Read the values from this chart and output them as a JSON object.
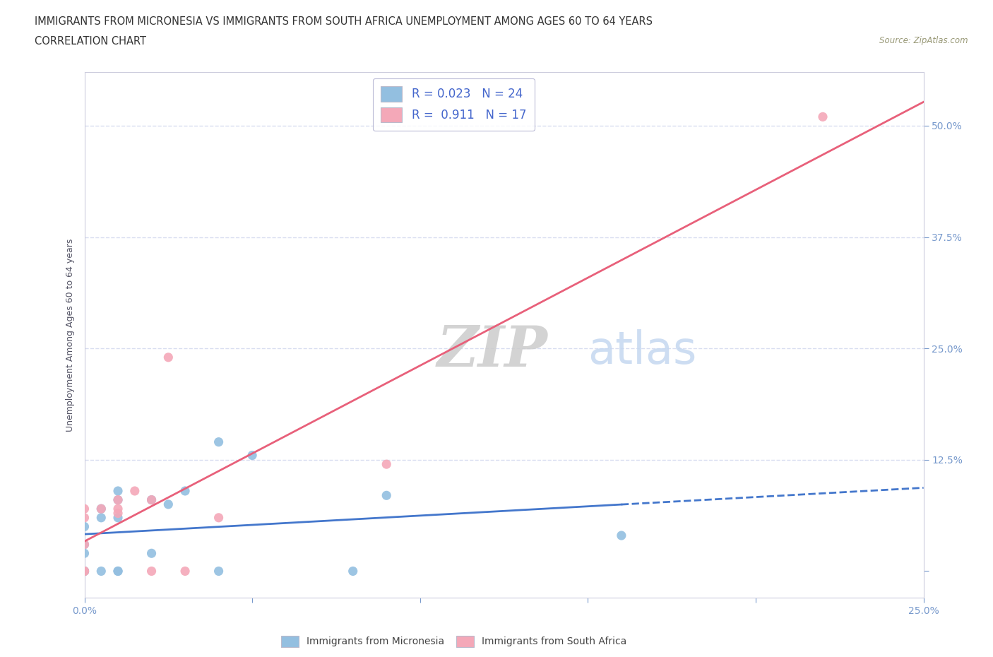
{
  "title_line1": "IMMIGRANTS FROM MICRONESIA VS IMMIGRANTS FROM SOUTH AFRICA UNEMPLOYMENT AMONG AGES 60 TO 64 YEARS",
  "title_line2": "CORRELATION CHART",
  "source": "Source: ZipAtlas.com",
  "ylabel": "Unemployment Among Ages 60 to 64 years",
  "xlim": [
    0.0,
    0.25
  ],
  "ylim": [
    -0.03,
    0.56
  ],
  "xticks": [
    0.0,
    0.05,
    0.1,
    0.15,
    0.2,
    0.25
  ],
  "yticks": [
    0.0,
    0.125,
    0.25,
    0.375,
    0.5
  ],
  "xticklabels": [
    "0.0%",
    "",
    "",
    "",
    "",
    "25.0%"
  ],
  "yticklabels": [
    "",
    "12.5%",
    "25.0%",
    "37.5%",
    "50.0%"
  ],
  "micronesia_color": "#93bfe0",
  "south_africa_color": "#f4a8b8",
  "regression_micronesia_color": "#4477cc",
  "regression_south_africa_color": "#e8607a",
  "legend_R_micronesia": "0.023",
  "legend_N_micronesia": "24",
  "legend_R_south_africa": "0.911",
  "legend_N_south_africa": "17",
  "micronesia_x": [
    0.0,
    0.0,
    0.0,
    0.0,
    0.0,
    0.0,
    0.005,
    0.005,
    0.005,
    0.01,
    0.01,
    0.01,
    0.01,
    0.01,
    0.02,
    0.02,
    0.025,
    0.03,
    0.04,
    0.04,
    0.05,
    0.08,
    0.09,
    0.16
  ],
  "micronesia_y": [
    0.0,
    0.0,
    0.0,
    0.02,
    0.03,
    0.05,
    0.0,
    0.06,
    0.07,
    0.0,
    0.0,
    0.06,
    0.08,
    0.09,
    0.02,
    0.08,
    0.075,
    0.09,
    0.0,
    0.145,
    0.13,
    0.0,
    0.085,
    0.04
  ],
  "south_africa_x": [
    0.0,
    0.0,
    0.0,
    0.0,
    0.0,
    0.005,
    0.01,
    0.01,
    0.01,
    0.015,
    0.02,
    0.02,
    0.025,
    0.03,
    0.04,
    0.09,
    0.22
  ],
  "south_africa_y": [
    0.0,
    0.0,
    0.03,
    0.06,
    0.07,
    0.07,
    0.065,
    0.07,
    0.08,
    0.09,
    0.0,
    0.08,
    0.24,
    0.0,
    0.06,
    0.12,
    0.51
  ],
  "grid_color": "#d8ddf0",
  "background_color": "#ffffff",
  "tick_color": "#7799cc"
}
